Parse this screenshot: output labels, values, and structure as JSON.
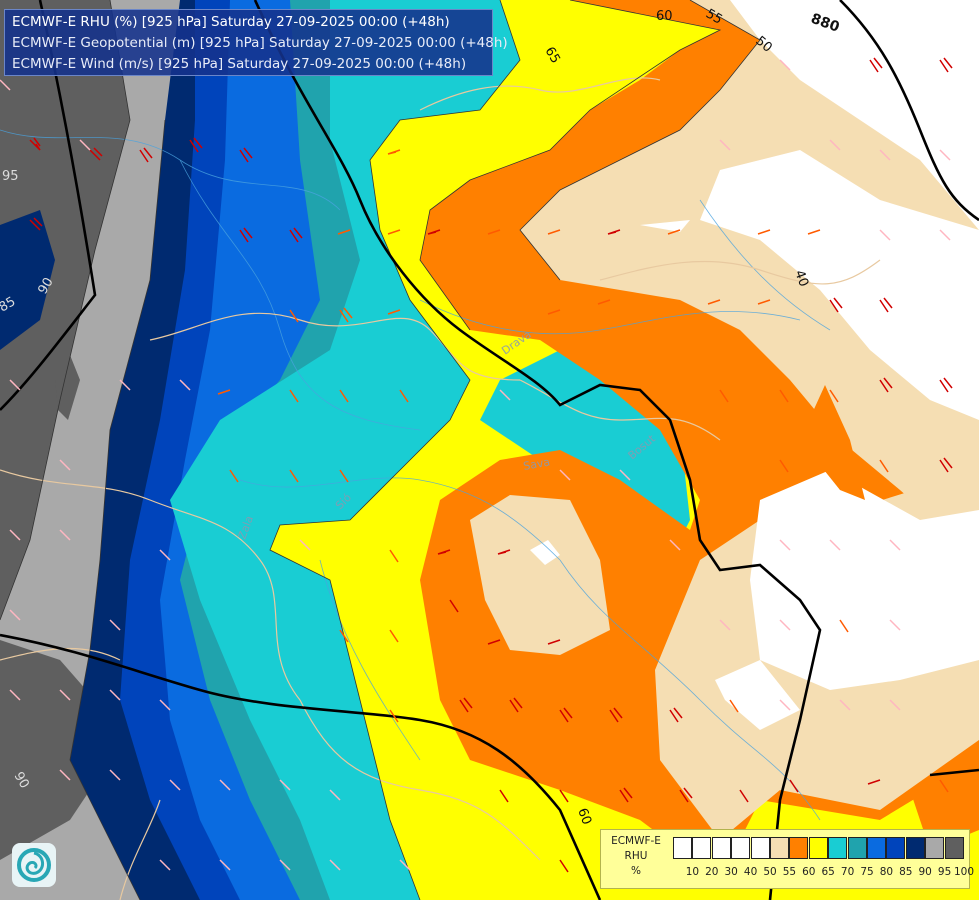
{
  "title": {
    "line1": "ECMWF-E RHU (%) [925 hPa] Saturday 27-09-2025 00:00 (+48h)",
    "line2": "ECMWF-E Geopotential (m) [925 hPa] Saturday 27-09-2025 00:00 (+48h)",
    "line3": "ECMWF-E Wind (m/s) [925 hPa] Saturday 27-09-2025 00:00 (+48h)"
  },
  "legend": {
    "label_model": "ECMWF-E",
    "label_var": "RHU",
    "label_unit": "%",
    "ticks": [
      "10",
      "20",
      "30",
      "40",
      "50",
      "55",
      "60",
      "65",
      "70",
      "75",
      "80",
      "85",
      "90",
      "95",
      "100"
    ],
    "colors": [
      "#ffffff",
      "#ffffff",
      "#ffffff",
      "#ffffff",
      "#ffffff",
      "#f5deb3",
      "#ff8000",
      "#ffff00",
      "#19cdd3",
      "#20a3ad",
      "#0a6be0",
      "#0044bb",
      "#002a70",
      "#a9a9a9",
      "#5f5f5f"
    ]
  },
  "contour_labels": {
    "geo_880": "880",
    "rhu_95": "95",
    "rhu_90": "90",
    "rhu_85": "85",
    "rhu_65": "65",
    "rhu_60_top": "60",
    "rhu_55_top": "55",
    "rhu_50": "50",
    "rhu_40": "40",
    "rhu_60_bottom": "60",
    "rhu_90_bottom": "90"
  },
  "place_labels": {
    "drava": "Drava",
    "sava": "Sava",
    "basut": "Bosut",
    "zala": "Zala",
    "sio": "Sió"
  },
  "colors": {
    "rhu_gray_dark": "#5f5f5f",
    "rhu_gray": "#a9a9a9",
    "rhu_navy": "#002a70",
    "rhu_blue_dark": "#0044bb",
    "rhu_blue": "#0a6be0",
    "rhu_teal": "#20a3ad",
    "rhu_cyan": "#19cdd3",
    "rhu_yellow": "#ffff00",
    "rhu_orange": "#ff8000",
    "rhu_tan": "#f5deb3",
    "rhu_white": "#ffffff"
  },
  "logo_icon": "ecmwf-swirl-icon"
}
